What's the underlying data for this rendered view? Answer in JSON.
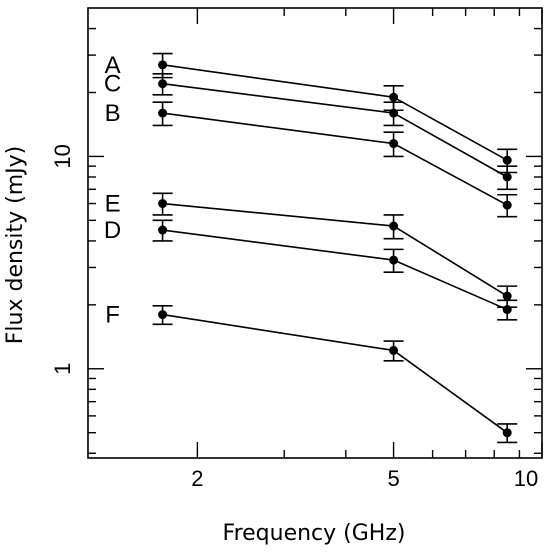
{
  "chart_data": {
    "type": "line",
    "xlabel": "Frequency (GHz)",
    "ylabel": "Flux density (mJy)",
    "xscale": "log",
    "yscale": "log",
    "xlim": [
      1.2,
      10
    ],
    "ylim": [
      0.38,
      50
    ],
    "x_major_ticks": [
      2,
      5,
      10
    ],
    "x_minor_ticks": [
      3,
      4,
      6,
      7,
      8,
      9
    ],
    "y_major_ticks": [
      1,
      10
    ],
    "y_minor_ticks": [
      0.4,
      0.5,
      0.6,
      0.7,
      0.8,
      0.9,
      2,
      3,
      4,
      5,
      6,
      7,
      8,
      9,
      20,
      30,
      40
    ],
    "x_tick_labels": [
      "2",
      "5",
      "10"
    ],
    "y_tick_labels": [
      "1",
      "10"
    ],
    "grid": false,
    "x": [
      1.7,
      5.0,
      8.5
    ],
    "series": [
      {
        "name": "A",
        "values": [
          27.0,
          19.0,
          9.6
        ],
        "err": [
          [
            3.5,
            2.5,
            1.2
          ],
          [
            3.5,
            2.5,
            1.2
          ]
        ]
      },
      {
        "name": "C",
        "values": [
          22.0,
          16.0,
          8.0
        ],
        "err": [
          [
            2.5,
            2.0,
            1.0
          ],
          [
            2.5,
            2.0,
            1.0
          ]
        ]
      },
      {
        "name": "B",
        "values": [
          16.0,
          11.5,
          5.9
        ],
        "err": [
          [
            2.0,
            1.5,
            0.7
          ],
          [
            2.0,
            1.5,
            0.7
          ]
        ]
      },
      {
        "name": "E",
        "values": [
          6.0,
          4.7,
          2.2
        ],
        "err": [
          [
            0.7,
            0.6,
            0.25
          ],
          [
            0.7,
            0.6,
            0.25
          ]
        ]
      },
      {
        "name": "D",
        "values": [
          4.5,
          3.25,
          1.9
        ],
        "err": [
          [
            0.5,
            0.4,
            0.2
          ],
          [
            0.5,
            0.4,
            0.2
          ]
        ]
      },
      {
        "name": "F",
        "values": [
          1.8,
          1.22,
          0.5
        ],
        "err": [
          [
            0.18,
            0.13,
            0.05
          ],
          [
            0.18,
            0.13,
            0.05
          ]
        ]
      }
    ]
  }
}
